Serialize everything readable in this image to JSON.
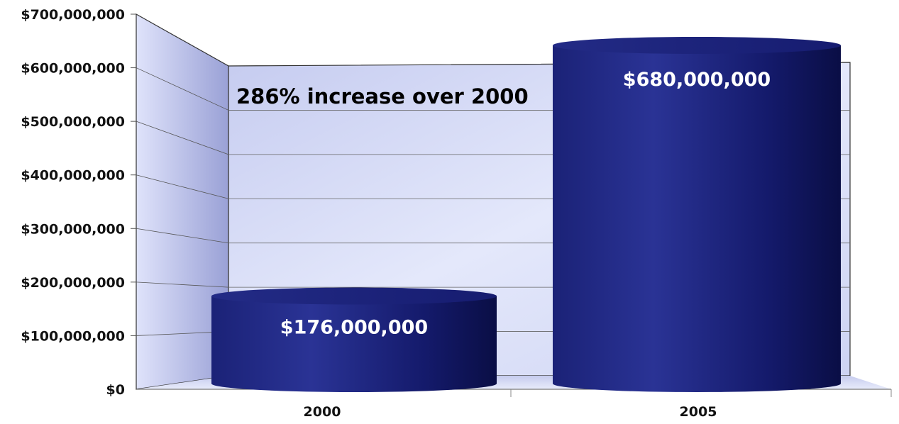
{
  "chart_data": {
    "type": "bar",
    "categories": [
      "2000",
      "2005"
    ],
    "values": [
      176000000,
      680000000
    ],
    "data_labels": [
      "$176,000,000",
      "$680,000,000"
    ],
    "annotation": "286% increase over 2000",
    "y_ticks": [
      "$0",
      "$100,000,000",
      "$200,000,000",
      "$300,000,000",
      "$400,000,000",
      "$500,000,000",
      "$600,000,000",
      "$700,000,000"
    ],
    "ylim": [
      0,
      700000000
    ],
    "grid": true,
    "colors": {
      "bar": "#141a6e",
      "bar_light": "#2d3596",
      "wall": "#d5dbf6",
      "wall_edge": "#a7aedc"
    }
  }
}
